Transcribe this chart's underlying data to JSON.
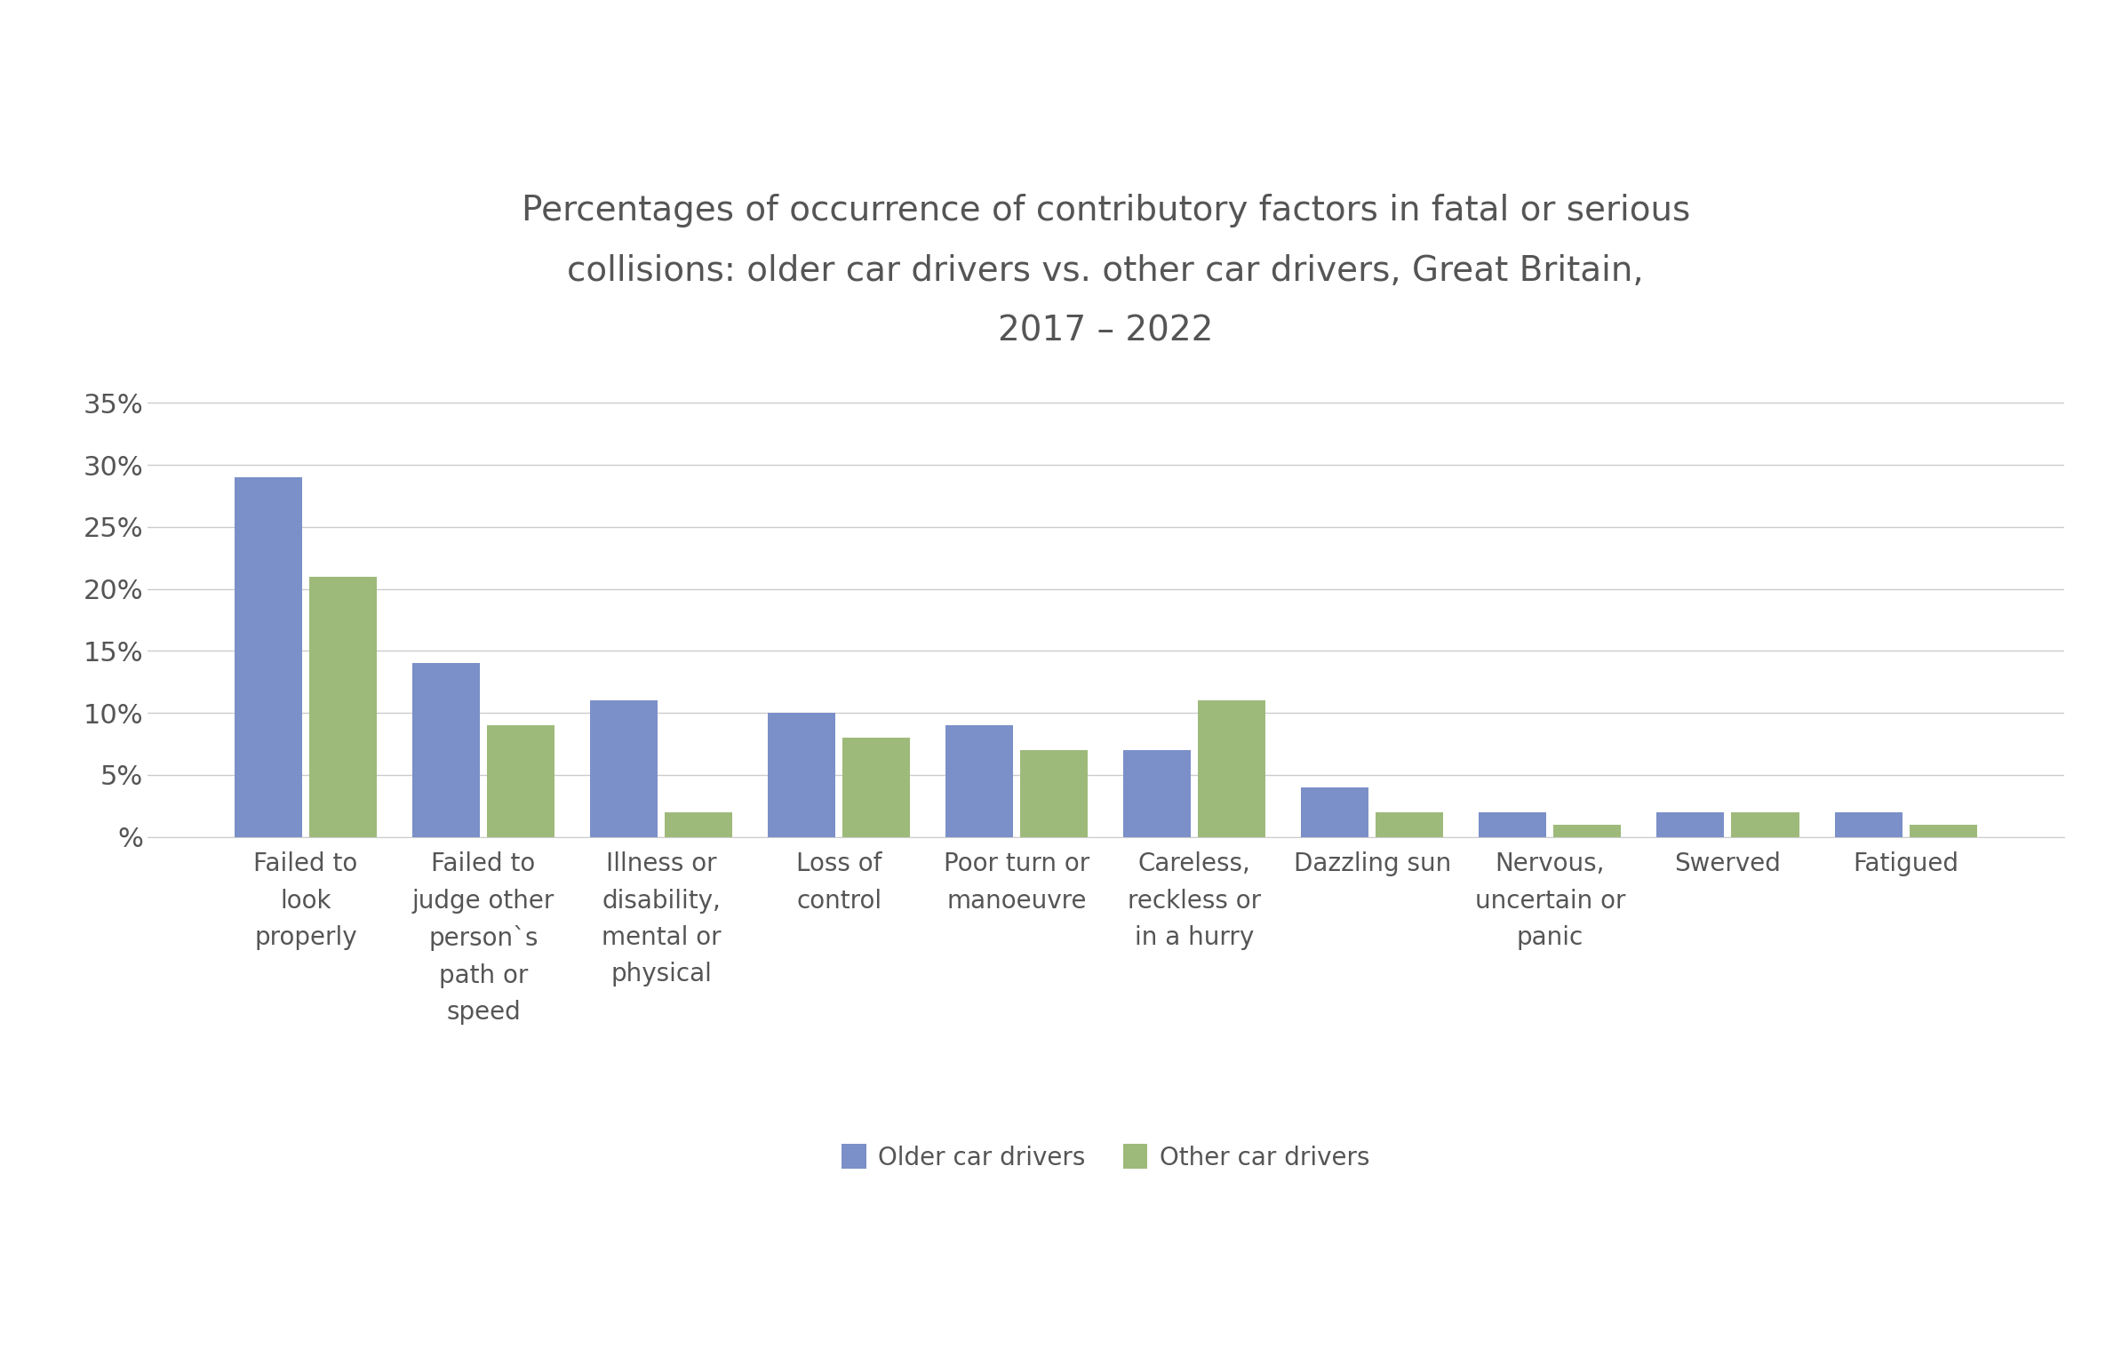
{
  "title": "Percentages of occurrence of contributory factors in fatal or serious\ncollisions: older car drivers vs. other car drivers, Great Britain,\n2017 – 2022",
  "categories": [
    "Failed to\nlook\nproperly",
    "Failed to\njudge other\nperson`s\npath or\nspeed",
    "Illness or\ndisability,\nmental or\nphysical",
    "Loss of\ncontrol",
    "Poor turn or\nmanoeuvre",
    "Careless,\nreckless or\nin a hurry",
    "Dazzling sun",
    "Nervous,\nuncertain or\npanic",
    "Swerved",
    "Fatigued"
  ],
  "older_drivers": [
    29,
    14,
    11,
    10,
    9,
    7,
    4,
    2,
    2,
    2
  ],
  "other_drivers": [
    21,
    9,
    2,
    8,
    7,
    11,
    2,
    1,
    2,
    1
  ],
  "older_color": "#7b8fc8",
  "other_color": "#9eba7a",
  "yticks": [
    0,
    5,
    10,
    15,
    20,
    25,
    30,
    35
  ],
  "ytick_labels": [
    "%",
    "5%",
    "10%",
    "15%",
    "20%",
    "25%",
    "30%",
    "35%"
  ],
  "ylim": [
    0,
    37
  ],
  "legend_labels": [
    "Older car drivers",
    "Other car drivers"
  ],
  "title_fontsize": 28,
  "tick_fontsize": 22,
  "label_fontsize": 20,
  "legend_fontsize": 20,
  "background_color": "#ffffff",
  "grid_color": "#cccccc",
  "text_color": "#555555"
}
